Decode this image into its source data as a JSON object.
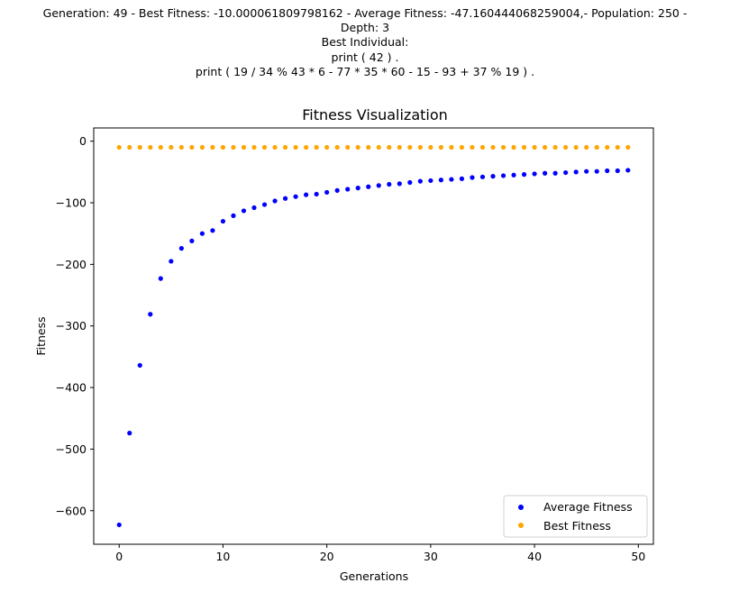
{
  "header": {
    "lines": [
      "Generation: 49 - Best Fitness: -10.000061809798162 - Average Fitness: -47.160444068259004,- Population: 250 -",
      "Depth: 3",
      "Best Individual:",
      "print ( 42 ) .",
      "print ( 19 / 34 % 43 * 6 - 77 * 35 * 60 - 15 - 93 + 37 % 19 ) ."
    ]
  },
  "colors": {
    "average": "#0000ff",
    "best": "#ffa500"
  },
  "chart_data": {
    "type": "scatter",
    "title": "Fitness Visualization",
    "xlabel": "Generations",
    "ylabel": "Fitness",
    "xlim": [
      -2.45,
      51.45
    ],
    "ylim": [
      -654.5,
      21.5
    ],
    "xticks": [
      0,
      10,
      20,
      30,
      40,
      50
    ],
    "yticks": [
      0,
      -100,
      -200,
      -300,
      -400,
      -500,
      -600
    ],
    "xtick_labels": [
      "0",
      "10",
      "20",
      "30",
      "40",
      "50"
    ],
    "ytick_labels": [
      "0",
      "−100",
      "−200",
      "−300",
      "−400",
      "−500",
      "−600"
    ],
    "grid": false,
    "legend_position": "lower-right",
    "x": [
      0,
      1,
      2,
      3,
      4,
      5,
      6,
      7,
      8,
      9,
      10,
      11,
      12,
      13,
      14,
      15,
      16,
      17,
      18,
      19,
      20,
      21,
      22,
      23,
      24,
      25,
      26,
      27,
      28,
      29,
      30,
      31,
      32,
      33,
      34,
      35,
      36,
      37,
      38,
      39,
      40,
      41,
      42,
      43,
      44,
      45,
      46,
      47,
      48,
      49
    ],
    "series": [
      {
        "name": "Average Fitness",
        "values": [
          -623,
          -474,
          -364,
          -281,
          -223,
          -195,
          -174,
          -162,
          -150,
          -145,
          -130,
          -121,
          -113,
          -108,
          -103,
          -97,
          -93,
          -90,
          -87,
          -86,
          -83,
          -80,
          -78,
          -76,
          -74,
          -72,
          -70,
          -69,
          -67,
          -65,
          -64,
          -63,
          -62,
          -61,
          -59,
          -58,
          -57,
          -56,
          -55,
          -54,
          -53,
          -52,
          -52,
          -51,
          -50,
          -49,
          -49,
          -48,
          -48,
          -47.2
        ]
      },
      {
        "name": "Best Fitness",
        "values": [
          -10,
          -10,
          -10,
          -10,
          -10,
          -10,
          -10,
          -10,
          -10,
          -10,
          -10,
          -10,
          -10,
          -10,
          -10,
          -10,
          -10,
          -10,
          -10,
          -10,
          -10,
          -10,
          -10,
          -10,
          -10,
          -10,
          -10,
          -10,
          -10,
          -10,
          -10,
          -10,
          -10,
          -10,
          -10,
          -10,
          -10,
          -10,
          -10,
          -10,
          -10,
          -10,
          -10,
          -10,
          -10,
          -10,
          -10,
          -10,
          -10,
          -10
        ]
      }
    ]
  }
}
